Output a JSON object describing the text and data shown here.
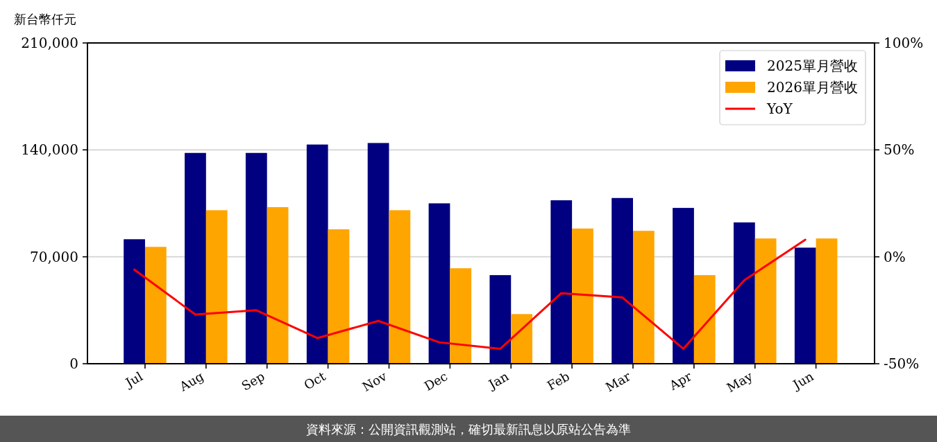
{
  "chart_data": {
    "type": "bar",
    "ylabel": "新台幣仟元",
    "categories": [
      "Jul",
      "Aug",
      "Sep",
      "Oct",
      "Nov",
      "Dec",
      "Jan",
      "Feb",
      "Mar",
      "Apr",
      "May",
      "Jun"
    ],
    "series": [
      {
        "name": "2025單月營收",
        "color": "#000080",
        "values": [
          81500,
          138000,
          138000,
          143500,
          144500,
          105000,
          58000,
          107000,
          108500,
          102000,
          92500,
          76000
        ]
      },
      {
        "name": "2026單月營收",
        "color": "#ffa500",
        "values": [
          76500,
          100500,
          102500,
          88000,
          100500,
          62500,
          32500,
          88500,
          87000,
          58000,
          82000,
          82000
        ]
      },
      {
        "name": "YoY",
        "type": "line",
        "axis": "y2",
        "color": "#ff0000",
        "values": [
          -6,
          -27,
          -25,
          -38,
          -30,
          -40,
          -43,
          -17,
          -19,
          -43,
          -11,
          8
        ]
      }
    ],
    "ylim": [
      0,
      210000
    ],
    "yticks": [
      0,
      {
        "value": 70000,
        "label": "70,000"
      },
      {
        "value": 140000,
        "label": "140,000"
      },
      {
        "value": 210000,
        "label": "210,000"
      }
    ],
    "y2lim": [
      -50,
      100
    ],
    "y2ticks": [
      {
        "value": -50,
        "label": "-50%"
      },
      {
        "value": 0,
        "label": "0%"
      },
      {
        "value": 50,
        "label": "50%"
      },
      {
        "value": 100,
        "label": "100%"
      }
    ],
    "grid": "y",
    "legend": "top right",
    "annotations": [
      "資料來源：公開資訊觀測站，確切最新訊息以原站公告為準"
    ]
  }
}
